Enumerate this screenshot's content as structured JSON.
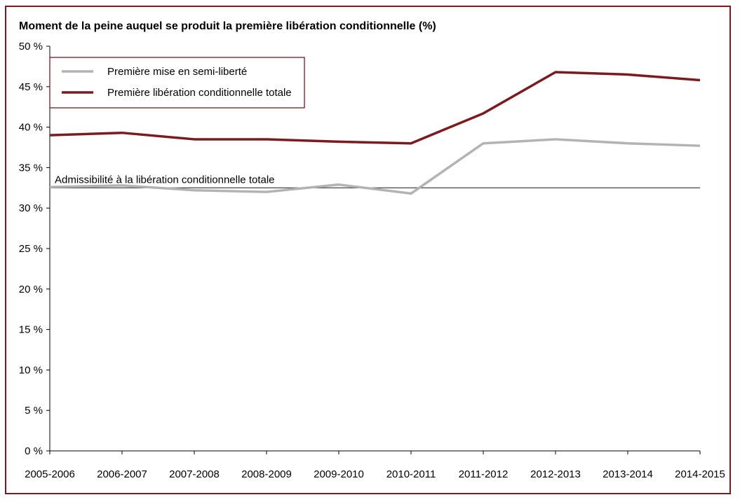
{
  "chart_data": {
    "type": "line",
    "title": "Moment de la peine auquel se produit la première libération conditionnelle (%)",
    "xlabel": "",
    "ylabel": "",
    "categories": [
      "2005-2006",
      "2006-2007",
      "2007-2008",
      "2008-2009",
      "2009-2010",
      "2010-2011",
      "2011-2012",
      "2012-2013",
      "2013-2014",
      "2014-2015"
    ],
    "y_tick_labels": [
      "0 %",
      "5 %",
      "10 %",
      "15 %",
      "20 %",
      "25 %",
      "30 %",
      "35 %",
      "40 %",
      "45 %",
      "50 %"
    ],
    "ylim": [
      0,
      50
    ],
    "grid": false,
    "legend_position": "top-left",
    "series": [
      {
        "name": "Première mise en semi-liberté",
        "color": "#b3b3b3",
        "values": [
          32.6,
          32.8,
          32.2,
          32.0,
          32.9,
          31.8,
          38.0,
          38.5,
          38.0,
          37.7
        ]
      },
      {
        "name": "Première libération conditionnelle totale",
        "color": "#7b1a1f",
        "values": [
          39.0,
          39.3,
          38.5,
          38.5,
          38.2,
          38.0,
          41.7,
          46.8,
          46.5,
          45.8
        ]
      }
    ],
    "reference_line": {
      "label": "Admissibilité à la libération conditionnelle totale",
      "value": 32.5,
      "color": "#555555"
    }
  }
}
